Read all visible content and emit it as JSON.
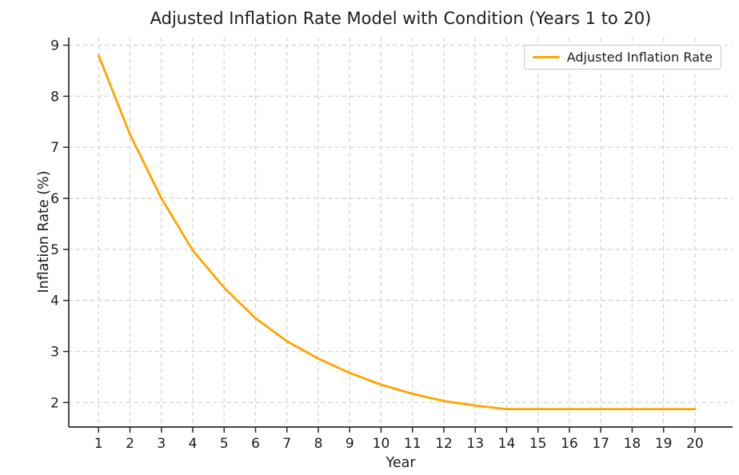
{
  "chart_data": {
    "type": "line",
    "title": "Adjusted Inflation Rate Model with Condition (Years 1 to 20)",
    "xlabel": "Year",
    "ylabel": "Inflation Rate (%)",
    "x": [
      1,
      2,
      3,
      4,
      5,
      6,
      7,
      8,
      9,
      10,
      11,
      12,
      13,
      14,
      15,
      16,
      17,
      18,
      19,
      20
    ],
    "series": [
      {
        "name": "Adjusted Inflation Rate",
        "color": "#FFA500",
        "values": [
          8.8,
          7.25,
          6.0,
          4.98,
          4.25,
          3.65,
          3.2,
          2.86,
          2.58,
          2.35,
          2.17,
          2.03,
          1.94,
          1.87,
          1.87,
          1.87,
          1.87,
          1.87,
          1.87,
          1.87
        ]
      }
    ],
    "xticks": [
      1,
      2,
      3,
      4,
      5,
      6,
      7,
      8,
      9,
      10,
      11,
      12,
      13,
      14,
      15,
      16,
      17,
      18,
      19,
      20
    ],
    "yticks": [
      2,
      3,
      4,
      5,
      6,
      7,
      8,
      9
    ],
    "xlim": [
      0.05,
      21.2
    ],
    "ylim": [
      1.52,
      9.15
    ],
    "grid": true,
    "grid_style": "dashed",
    "legend_position": "upper right"
  },
  "colors": {
    "line": "#FFA500",
    "grid": "#d6d6d6",
    "spine": "#2a2a2a",
    "text": "#1c1c1c",
    "legend_border": "#c9c9c9",
    "background": "#ffffff"
  }
}
